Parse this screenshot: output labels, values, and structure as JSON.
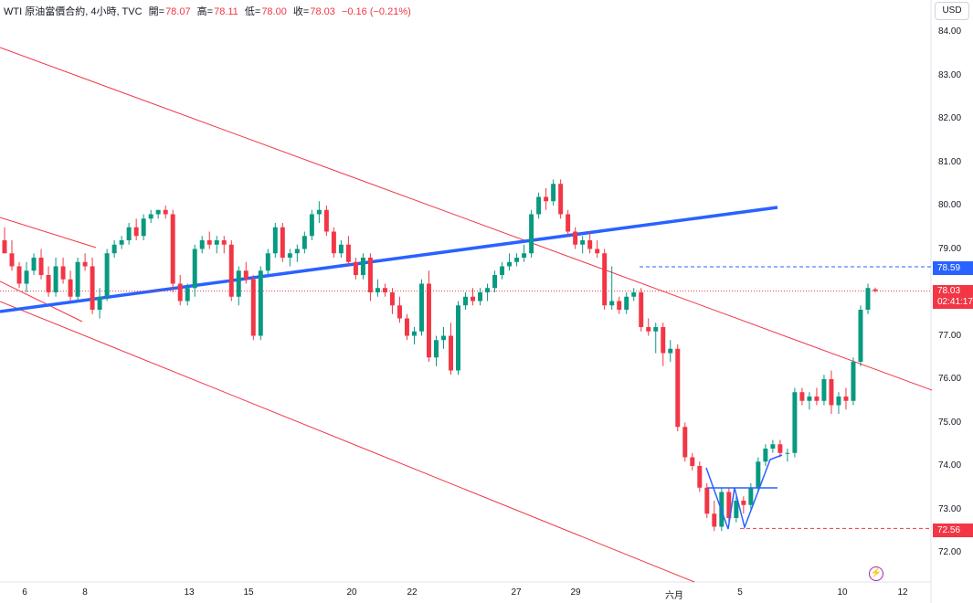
{
  "legend": {
    "symbol": "WTI 原油當價合約, 4小時, TVC",
    "open_label": "開=",
    "open": "78.07",
    "high_label": "高=",
    "high": "78.11",
    "low_label": "低=",
    "low": "78.00",
    "close_label": "收=",
    "close": "78.03",
    "change": "−0.16 (−0.21%)"
  },
  "currency_button": "USD",
  "price_tags": {
    "blue_level": "78.59",
    "last_price": "78.03",
    "countdown": "02:41:17",
    "low_level": "72.56"
  },
  "colors": {
    "up": "#089981",
    "down": "#f23645",
    "trendline": "#2962ff",
    "channel": "#f23645"
  },
  "icons": {
    "replay": "lightning-icon"
  },
  "chart_data": {
    "type": "candlestick",
    "title": "WTI 原油當價合約, 4小時, TVC",
    "currency": "USD",
    "ylim": [
      71.5,
      84.2
    ],
    "y_ticks": [
      "84.00",
      "83.00",
      "82.00",
      "81.00",
      "80.00",
      "79.00",
      "78.00",
      "77.00",
      "76.00",
      "75.00",
      "74.00",
      "73.00",
      "72.00"
    ],
    "x_ticks": [
      "6",
      "8",
      "13",
      "15",
      "20",
      "22",
      "27",
      "29",
      "六月",
      "5",
      "10",
      "12"
    ],
    "candles": [
      [
        79.2,
        79.5,
        78.9,
        78.9
      ],
      [
        78.9,
        79.2,
        78.5,
        78.6
      ],
      [
        78.6,
        78.7,
        78.1,
        78.2
      ],
      [
        78.2,
        78.7,
        78.0,
        78.5
      ],
      [
        78.5,
        78.9,
        78.4,
        78.8
      ],
      [
        78.8,
        79.0,
        78.3,
        78.4
      ],
      [
        78.4,
        78.6,
        77.9,
        78.0
      ],
      [
        78.0,
        78.8,
        77.9,
        78.6
      ],
      [
        78.6,
        78.8,
        78.2,
        78.3
      ],
      [
        78.3,
        78.5,
        77.8,
        77.9
      ],
      [
        77.9,
        78.8,
        77.8,
        78.7
      ],
      [
        78.7,
        78.9,
        78.5,
        78.6
      ],
      [
        78.6,
        78.8,
        77.5,
        77.6
      ],
      [
        77.6,
        78.1,
        77.4,
        77.9
      ],
      [
        77.9,
        79.0,
        77.8,
        78.9
      ],
      [
        78.9,
        79.2,
        78.8,
        79.1
      ],
      [
        79.1,
        79.3,
        79.0,
        79.2
      ],
      [
        79.2,
        79.6,
        79.1,
        79.5
      ],
      [
        79.5,
        79.7,
        79.2,
        79.3
      ],
      [
        79.3,
        79.8,
        79.2,
        79.7
      ],
      [
        79.7,
        79.9,
        79.6,
        79.8
      ],
      [
        79.8,
        79.9,
        79.7,
        79.9
      ],
      [
        79.9,
        80.0,
        79.7,
        79.8
      ],
      [
        79.8,
        79.9,
        78.0,
        78.2
      ],
      [
        78.2,
        78.4,
        77.7,
        77.8
      ],
      [
        77.8,
        78.2,
        77.7,
        78.1
      ],
      [
        78.1,
        79.1,
        77.9,
        79.0
      ],
      [
        79.0,
        79.3,
        78.9,
        79.2
      ],
      [
        79.2,
        79.4,
        79.0,
        79.1
      ],
      [
        79.1,
        79.3,
        78.9,
        79.2
      ],
      [
        79.2,
        79.3,
        78.9,
        79.1
      ],
      [
        79.1,
        79.2,
        77.8,
        77.9
      ],
      [
        77.9,
        78.6,
        77.7,
        78.5
      ],
      [
        78.5,
        78.7,
        78.2,
        78.3
      ],
      [
        78.3,
        78.4,
        76.9,
        77.0
      ],
      [
        77.0,
        78.6,
        76.9,
        78.5
      ],
      [
        78.5,
        79.0,
        78.4,
        78.9
      ],
      [
        78.9,
        79.6,
        78.8,
        79.5
      ],
      [
        79.5,
        79.6,
        78.7,
        78.8
      ],
      [
        78.8,
        79.0,
        78.6,
        78.9
      ],
      [
        78.9,
        79.1,
        78.7,
        79.0
      ],
      [
        79.0,
        79.4,
        78.9,
        79.3
      ],
      [
        79.3,
        79.9,
        79.2,
        79.8
      ],
      [
        79.8,
        80.1,
        79.6,
        79.9
      ],
      [
        79.9,
        80.0,
        79.3,
        79.4
      ],
      [
        79.4,
        79.5,
        78.8,
        78.9
      ],
      [
        78.9,
        79.2,
        78.8,
        79.1
      ],
      [
        79.1,
        79.3,
        78.6,
        78.7
      ],
      [
        78.7,
        78.8,
        78.3,
        78.4
      ],
      [
        78.4,
        78.9,
        78.3,
        78.8
      ],
      [
        78.8,
        78.9,
        77.8,
        78.0
      ],
      [
        78.0,
        78.3,
        77.9,
        78.1
      ],
      [
        78.1,
        78.2,
        77.9,
        78.0
      ],
      [
        78.0,
        78.1,
        77.5,
        77.7
      ],
      [
        77.7,
        77.9,
        77.3,
        77.4
      ],
      [
        77.4,
        77.5,
        76.9,
        77.0
      ],
      [
        77.0,
        77.2,
        76.8,
        77.1
      ],
      [
        77.1,
        78.3,
        77.0,
        78.2
      ],
      [
        78.2,
        78.5,
        76.4,
        76.5
      ],
      [
        76.5,
        77.0,
        76.3,
        76.9
      ],
      [
        76.9,
        77.2,
        76.7,
        77.0
      ],
      [
        77.0,
        77.3,
        76.1,
        76.2
      ],
      [
        76.2,
        77.8,
        76.1,
        77.7
      ],
      [
        77.7,
        78.0,
        77.6,
        77.9
      ],
      [
        77.9,
        78.1,
        77.7,
        77.8
      ],
      [
        77.8,
        78.1,
        77.7,
        78.0
      ],
      [
        78.0,
        78.2,
        77.8,
        78.1
      ],
      [
        78.1,
        78.5,
        78.0,
        78.4
      ],
      [
        78.4,
        78.7,
        78.3,
        78.6
      ],
      [
        78.6,
        78.9,
        78.5,
        78.7
      ],
      [
        78.7,
        78.9,
        78.6,
        78.8
      ],
      [
        78.8,
        79.1,
        78.7,
        78.9
      ],
      [
        78.9,
        79.9,
        78.8,
        79.8
      ],
      [
        79.8,
        80.3,
        79.7,
        80.2
      ],
      [
        80.2,
        80.4,
        79.9,
        80.1
      ],
      [
        80.1,
        80.6,
        80.0,
        80.5
      ],
      [
        80.5,
        80.6,
        79.7,
        79.8
      ],
      [
        79.8,
        79.9,
        79.3,
        79.4
      ],
      [
        79.4,
        79.5,
        79.0,
        79.1
      ],
      [
        79.1,
        79.3,
        78.9,
        79.2
      ],
      [
        79.2,
        79.4,
        78.9,
        79.0
      ],
      [
        79.0,
        79.2,
        78.8,
        78.9
      ],
      [
        78.9,
        79.0,
        77.6,
        77.7
      ],
      [
        77.7,
        78.6,
        77.6,
        77.8
      ],
      [
        77.8,
        77.9,
        77.5,
        77.6
      ],
      [
        77.6,
        78.0,
        77.5,
        77.9
      ],
      [
        77.9,
        78.1,
        77.8,
        78.0
      ],
      [
        78.0,
        78.1,
        77.1,
        77.2
      ],
      [
        77.2,
        77.4,
        77.0,
        77.1
      ],
      [
        77.1,
        77.3,
        76.6,
        77.2
      ],
      [
        77.2,
        77.3,
        76.3,
        76.6
      ],
      [
        76.6,
        76.9,
        76.4,
        76.7
      ],
      [
        76.7,
        76.8,
        74.8,
        74.9
      ],
      [
        74.9,
        75.0,
        74.1,
        74.2
      ],
      [
        74.2,
        74.3,
        73.9,
        74.0
      ],
      [
        74.0,
        74.1,
        73.4,
        73.5
      ],
      [
        73.5,
        73.6,
        72.8,
        72.9
      ],
      [
        72.9,
        73.2,
        72.5,
        72.6
      ],
      [
        72.6,
        73.5,
        72.5,
        73.4
      ],
      [
        73.4,
        73.5,
        72.7,
        72.8
      ],
      [
        72.8,
        73.3,
        72.7,
        73.2
      ],
      [
        73.2,
        73.3,
        72.9,
        73.1
      ],
      [
        73.1,
        73.6,
        73.0,
        73.5
      ],
      [
        73.5,
        74.2,
        73.4,
        74.1
      ],
      [
        74.1,
        74.5,
        74.0,
        74.4
      ],
      [
        74.4,
        74.6,
        74.3,
        74.5
      ],
      [
        74.5,
        74.6,
        74.2,
        74.3
      ],
      [
        74.3,
        74.4,
        74.1,
        74.3
      ],
      [
        74.3,
        75.8,
        74.2,
        75.7
      ],
      [
        75.7,
        75.8,
        75.4,
        75.5
      ],
      [
        75.5,
        75.7,
        75.3,
        75.6
      ],
      [
        75.6,
        75.8,
        75.4,
        75.5
      ],
      [
        75.5,
        76.1,
        75.4,
        76.0
      ],
      [
        76.0,
        76.2,
        75.2,
        75.4
      ],
      [
        75.4,
        75.7,
        75.2,
        75.6
      ],
      [
        75.6,
        75.8,
        75.3,
        75.5
      ],
      [
        75.5,
        76.5,
        75.4,
        76.4
      ],
      [
        76.4,
        77.7,
        76.3,
        77.6
      ],
      [
        77.6,
        78.2,
        77.5,
        78.1
      ],
      [
        78.07,
        78.11,
        78.0,
        78.03
      ]
    ],
    "trendlines": [
      {
        "type": "rising trendline",
        "from": [
          78.0
        ],
        "to": [
          79.6
        ]
      }
    ],
    "annotations": [
      "double bottom pattern near 72.56",
      "descending channel lines"
    ],
    "horizontal_levels": [
      78.59,
      78.03,
      72.56
    ]
  }
}
